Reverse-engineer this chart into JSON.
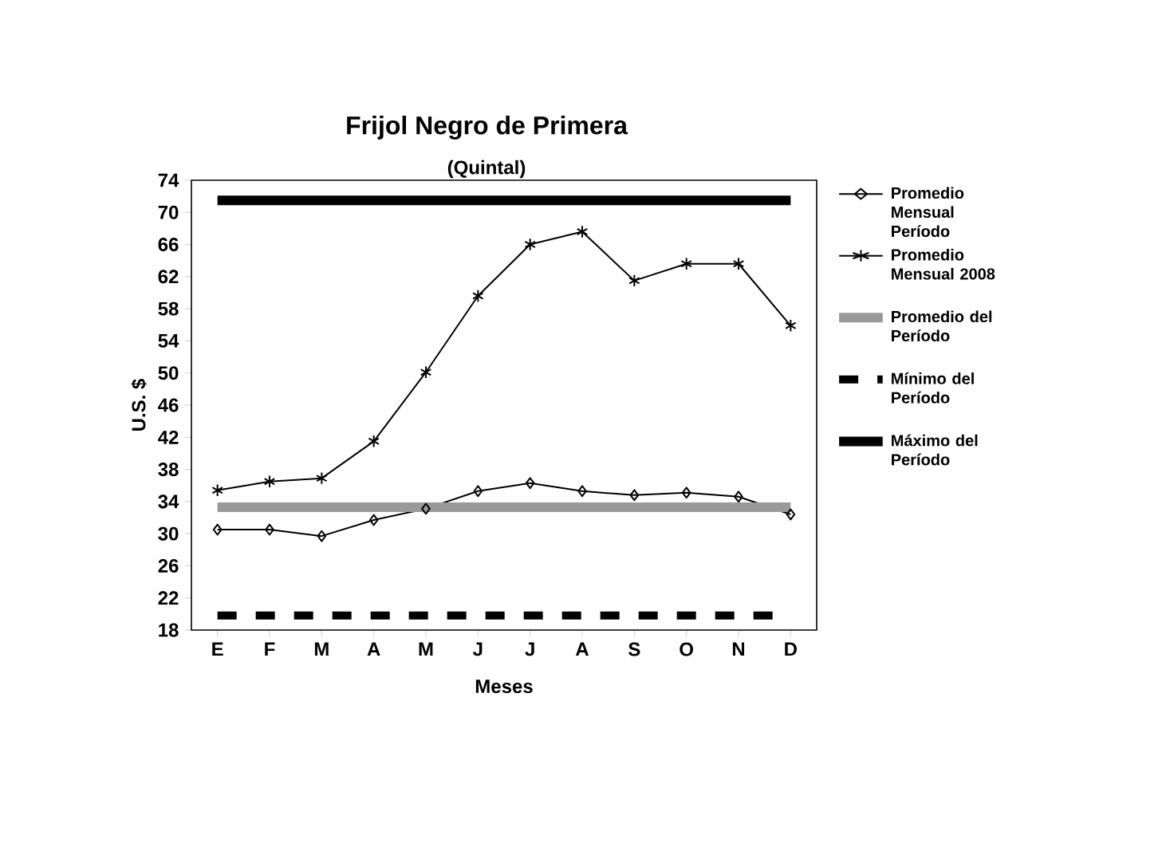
{
  "chart_data": {
    "type": "line",
    "title": "Frijol Negro de Primera",
    "subtitle": "(Quintal)",
    "xlabel": "Meses",
    "ylabel": "U.S. $",
    "categories": [
      "E",
      "F",
      "M",
      "A",
      "M",
      "J",
      "J",
      "A",
      "S",
      "O",
      "N",
      "D"
    ],
    "ylim": [
      18,
      74
    ],
    "yticks": [
      18,
      22,
      26,
      30,
      34,
      38,
      42,
      46,
      50,
      54,
      58,
      62,
      66,
      70,
      74
    ],
    "grid": false,
    "legend": "right",
    "series": [
      {
        "name": "Promedio Mensual Período",
        "color": "#000000",
        "marker": "diamond",
        "line_style": "solid",
        "values": [
          30.5,
          30.5,
          29.7,
          31.7,
          33.1,
          35.3,
          36.3,
          35.3,
          34.8,
          35.1,
          34.6,
          32.4
        ]
      },
      {
        "name": "Promedio Mensual 2008",
        "color": "#000000",
        "marker": "cross",
        "line_style": "solid",
        "values": [
          35.4,
          36.5,
          36.9,
          41.5,
          50.1,
          59.6,
          66.0,
          67.6,
          61.5,
          63.6,
          63.6,
          55.9
        ]
      },
      {
        "name": "Promedio del Período",
        "color": "#999999",
        "marker": "none",
        "line_style": "solid",
        "values": [
          33.3,
          33.3,
          33.3,
          33.3,
          33.3,
          33.3,
          33.3,
          33.3,
          33.3,
          33.3,
          33.3,
          33.3
        ]
      },
      {
        "name": "Mínimo del Período",
        "color": "#000000",
        "marker": "none",
        "line_style": "dashed",
        "values": [
          19.8,
          19.8,
          19.8,
          19.8,
          19.8,
          19.8,
          19.8,
          19.8,
          19.8,
          19.8,
          19.8,
          19.8
        ]
      },
      {
        "name": "Máximo del Período",
        "color": "#000000",
        "marker": "none",
        "line_style": "solid",
        "values": [
          71.5,
          71.5,
          71.5,
          71.5,
          71.5,
          71.5,
          71.5,
          71.5,
          71.5,
          71.5,
          71.5,
          71.5
        ]
      }
    ]
  }
}
